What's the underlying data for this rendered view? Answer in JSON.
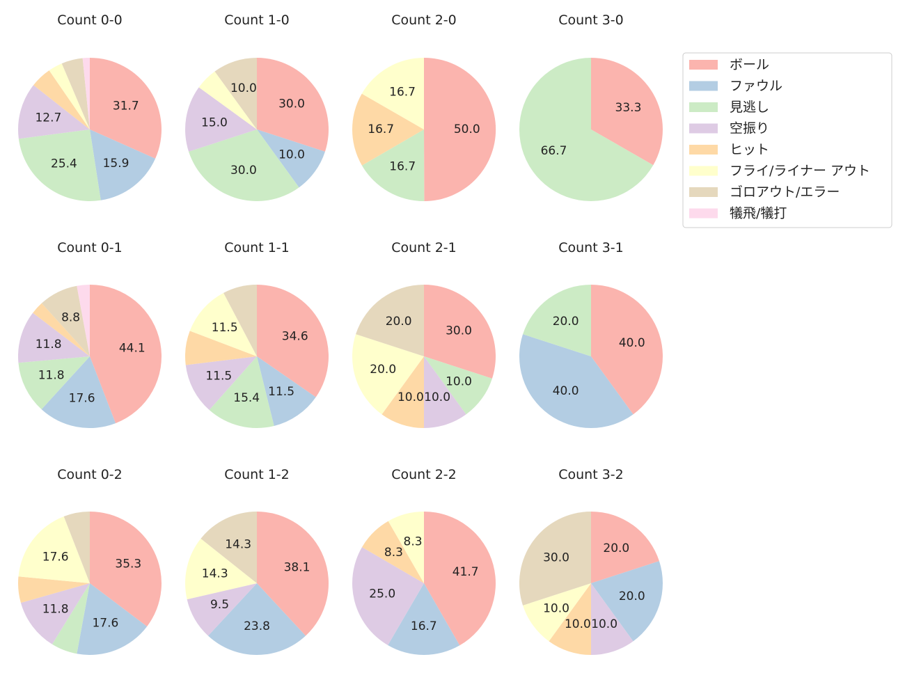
{
  "colors": [
    "#fbb4ae",
    "#b3cde3",
    "#ccebc5",
    "#decbe4",
    "#fed9a6",
    "#ffffcc",
    "#e5d8bd",
    "#fddaec"
  ],
  "chart_data": {
    "type": "pie",
    "legend_position": "top-right",
    "legend": [
      "ボール",
      "ファウル",
      "見逃し",
      "空振り",
      "ヒット",
      "フライ/ライナー アウト",
      "ゴロアウト/エラー",
      "犠飛/犠打"
    ],
    "charts": [
      {
        "title": "Count 0-0",
        "values": [
          31.7,
          15.9,
          25.4,
          12.7,
          4.8,
          3.2,
          4.8,
          1.6
        ],
        "labels": [
          "31.7",
          "15.9",
          "25.4",
          "12.7",
          "",
          "",
          "",
          ""
        ]
      },
      {
        "title": "Count 1-0",
        "values": [
          30.0,
          10.0,
          30.0,
          15.0,
          0,
          5.0,
          10.0,
          0
        ],
        "labels": [
          "30.0",
          "10.0",
          "30.0",
          "15.0",
          "",
          "",
          "10.0",
          ""
        ]
      },
      {
        "title": "Count 2-0",
        "values": [
          50.0,
          0,
          16.7,
          0,
          16.7,
          16.7,
          0,
          0
        ],
        "labels": [
          "50.0",
          "",
          "16.7",
          "",
          "16.7",
          "16.7",
          "",
          ""
        ]
      },
      {
        "title": "Count 3-0",
        "values": [
          33.3,
          0,
          66.7,
          0,
          0,
          0,
          0,
          0
        ],
        "labels": [
          "33.3",
          "",
          "66.7",
          "",
          "",
          "",
          "",
          ""
        ]
      },
      {
        "title": "Count 0-1",
        "values": [
          44.1,
          17.6,
          11.8,
          11.8,
          2.9,
          0,
          8.8,
          2.9
        ],
        "labels": [
          "44.1",
          "17.6",
          "11.8",
          "11.8",
          "",
          "",
          "8.8",
          ""
        ]
      },
      {
        "title": "Count 1-1",
        "values": [
          34.6,
          11.5,
          15.4,
          11.5,
          7.7,
          11.5,
          7.7,
          0
        ],
        "labels": [
          "34.6",
          "11.5",
          "15.4",
          "11.5",
          "",
          "11.5",
          "",
          ""
        ]
      },
      {
        "title": "Count 2-1",
        "values": [
          30.0,
          0,
          10.0,
          10.0,
          10.0,
          20.0,
          20.0,
          0
        ],
        "labels": [
          "30.0",
          "",
          "10.0",
          "10.0",
          "10.0",
          "20.0",
          "20.0",
          ""
        ]
      },
      {
        "title": "Count 3-1",
        "values": [
          40.0,
          40.0,
          20.0,
          0,
          0,
          0,
          0,
          0
        ],
        "labels": [
          "40.0",
          "40.0",
          "20.0",
          "",
          "",
          "",
          "",
          ""
        ]
      },
      {
        "title": "Count 0-2",
        "values": [
          35.3,
          17.6,
          5.9,
          11.8,
          5.9,
          17.6,
          5.9,
          0
        ],
        "labels": [
          "35.3",
          "17.6",
          "",
          "11.8",
          "",
          "17.6",
          "",
          ""
        ]
      },
      {
        "title": "Count 1-2",
        "values": [
          38.1,
          23.8,
          0,
          9.5,
          0,
          14.3,
          14.3,
          0
        ],
        "labels": [
          "38.1",
          "23.8",
          "",
          "9.5",
          "",
          "14.3",
          "14.3",
          ""
        ]
      },
      {
        "title": "Count 2-2",
        "values": [
          41.7,
          16.7,
          0,
          25.0,
          8.3,
          8.3,
          0,
          0
        ],
        "labels": [
          "41.7",
          "16.7",
          "",
          "25.0",
          "8.3",
          "8.3",
          "",
          ""
        ]
      },
      {
        "title": "Count 3-2",
        "values": [
          20.0,
          20.0,
          0,
          10.0,
          10.0,
          10.0,
          30.0,
          0
        ],
        "labels": [
          "20.0",
          "20.0",
          "",
          "10.0",
          "10.0",
          "10.0",
          "30.0",
          ""
        ]
      }
    ]
  }
}
